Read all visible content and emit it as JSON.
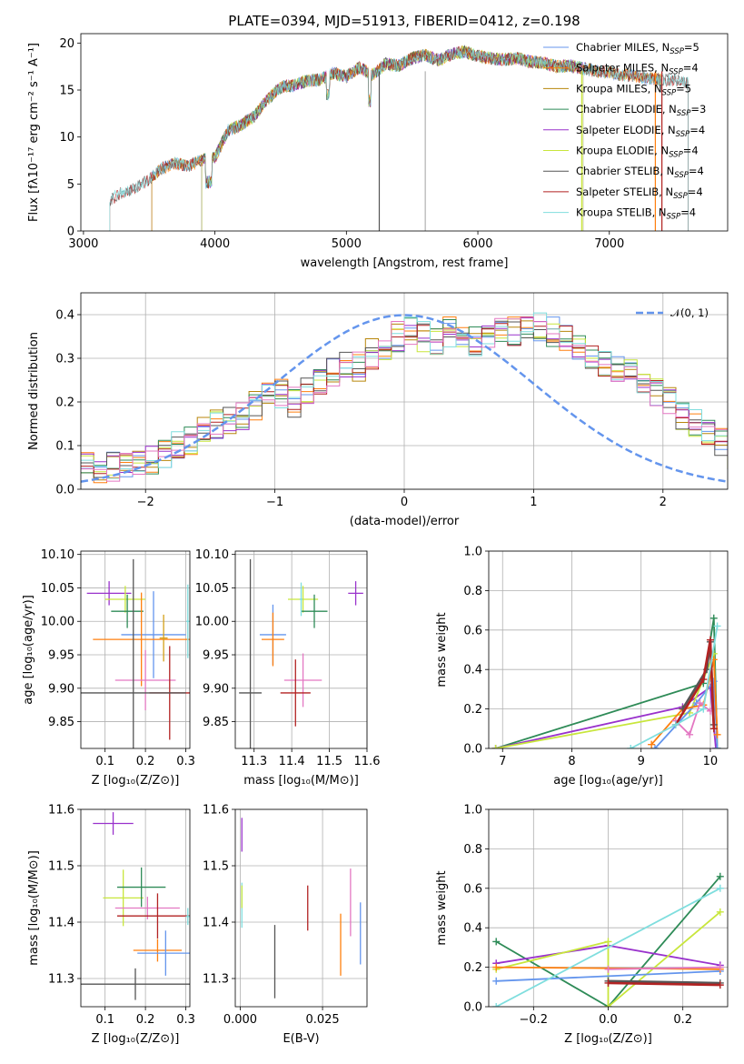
{
  "chart_data": [
    {
      "type": "line",
      "title": "PLATE=0394, MJD=51913, FIBERID=0412, z=0.198",
      "xlabel": "wavelength [Angstrom, rest frame]",
      "ylabel": "Flux [fλ10⁻¹⁷ erg cm⁻² s⁻¹ A⁻¹]",
      "xlim": [
        2980,
        7900
      ],
      "ylim": [
        0,
        21
      ],
      "xticks": [
        3000,
        4000,
        5000,
        6000,
        7000
      ],
      "yticks": [
        0,
        5,
        10,
        15,
        20
      ],
      "grid": false,
      "legend_position": "right",
      "x": [
        3200,
        3300,
        3400,
        3500,
        3600,
        3700,
        3800,
        3900,
        4000,
        4100,
        4200,
        4300,
        4400,
        4500,
        4600,
        4700,
        4800,
        4900,
        5000,
        5100,
        5200,
        5300,
        5400,
        5500,
        5600,
        5700,
        5800,
        5900,
        6000,
        6100,
        6200,
        6300,
        6400,
        6500,
        6600,
        6700,
        6800,
        6900,
        7000,
        7100,
        7200,
        7300,
        7400,
        7500,
        7600
      ],
      "y": [
        3.3,
        4.2,
        4.6,
        5.5,
        6.7,
        7.2,
        6.9,
        7.6,
        7.8,
        10.7,
        11.3,
        12.2,
        14.0,
        15.3,
        15.5,
        16.0,
        16.1,
        16.8,
        16.4,
        17.4,
        16.6,
        17.8,
        17.6,
        18.4,
        18.7,
        18.2,
        18.8,
        19.1,
        18.6,
        18.4,
        18.2,
        18.4,
        18.0,
        17.9,
        17.5,
        17.6,
        17.3,
        17.0,
        16.9,
        16.6,
        16.5,
        16.2,
        16.1,
        16.0,
        15.7
      ],
      "series": [
        {
          "name": "Chabrier MILES, N",
          "sub": "SSP",
          "suffix": "=5",
          "color": "#6495ed",
          "start": 3520,
          "end": 7400
        },
        {
          "name": "Salpeter MILES, N",
          "sub": "SSP",
          "suffix": "=4",
          "color": "#ff7f0e",
          "start": 3520,
          "end": 7400
        },
        {
          "name": "Kroupa MILES, N",
          "sub": "SSP",
          "suffix": "=5",
          "color": "#b8860b",
          "start": 3520,
          "end": 7400
        },
        {
          "name": "Chabrier ELODIE, N",
          "sub": "SSP",
          "suffix": "=3",
          "color": "#2e8b57",
          "start": 3900,
          "end": 6800
        },
        {
          "name": "Salpeter ELODIE, N",
          "sub": "SSP",
          "suffix": "=4",
          "color": "#9932cc",
          "start": 3900,
          "end": 6800
        },
        {
          "name": "Kroupa ELODIE, N",
          "sub": "SSP",
          "suffix": "=4",
          "color": "#c8e63c",
          "start": 3900,
          "end": 6800
        },
        {
          "name": "Chabrier STELIB, N",
          "sub": "SSP",
          "suffix": "=4",
          "color": "#555555",
          "start": 3200,
          "end": 7600
        },
        {
          "name": "Salpeter STELIB, N",
          "sub": "SSP",
          "suffix": "=4",
          "color": "#b22222",
          "start": 3200,
          "end": 7600
        },
        {
          "name": "Kroupa STELIB, N",
          "sub": "SSP",
          "suffix": "=4",
          "color": "#7fdede",
          "start": 3200,
          "end": 7600
        }
      ]
    },
    {
      "type": "bar",
      "xlabel": "(data-model)/error",
      "ylabel": "Normed distribution",
      "xlim": [
        -2.5,
        2.5
      ],
      "ylim": [
        0,
        0.45
      ],
      "xticks": [
        -2,
        -1,
        0,
        1,
        2
      ],
      "yticks": [
        0.0,
        0.1,
        0.2,
        0.3,
        0.4
      ],
      "grid": true,
      "bin_start": -2.5,
      "bin_width": 0.1,
      "values": [
        0.06,
        0.04,
        0.05,
        0.05,
        0.06,
        0.07,
        0.08,
        0.1,
        0.11,
        0.13,
        0.15,
        0.16,
        0.17,
        0.19,
        0.21,
        0.22,
        0.2,
        0.23,
        0.25,
        0.27,
        0.29,
        0.28,
        0.31,
        0.33,
        0.35,
        0.36,
        0.35,
        0.34,
        0.36,
        0.35,
        0.34,
        0.36,
        0.37,
        0.36,
        0.38,
        0.37,
        0.36,
        0.35,
        0.32,
        0.31,
        0.29,
        0.28,
        0.27,
        0.24,
        0.22,
        0.2,
        0.17,
        0.15,
        0.13,
        0.11,
        0.08
      ],
      "legend_position": "top-right",
      "reference": {
        "name": "𝒩(0, 1)",
        "color": "#6495ed",
        "mean": 0,
        "sigma": 1
      }
    },
    {
      "type": "scatter",
      "xlabel": "Z [log₁₀(Z/Z⊙)]",
      "ylabel": "age  [log₁₀(age/yr)]",
      "xlim": [
        0.04,
        0.31
      ],
      "ylim": [
        9.81,
        10.105
      ],
      "xticks": [
        0.1,
        0.2,
        0.3
      ],
      "yticks": [
        9.85,
        9.9,
        9.95,
        10.0,
        10.05,
        10.1
      ],
      "grid": true,
      "points": [
        {
          "x": 0.11,
          "y": 10.042,
          "xerr": 0.055,
          "yerr": 0.018,
          "color": "#9932cc"
        },
        {
          "x": 0.15,
          "y": 10.033,
          "xerr": 0.05,
          "yerr": 0.02,
          "color": "#c8e63c"
        },
        {
          "x": 0.155,
          "y": 10.015,
          "xerr": 0.04,
          "yerr": 0.025,
          "color": "#2e8b57"
        },
        {
          "x": 0.22,
          "y": 9.98,
          "xerr": 0.08,
          "yerr": 0.065,
          "color": "#6495ed"
        },
        {
          "x": 0.19,
          "y": 9.973,
          "xerr": 0.12,
          "yerr": 0.07,
          "color": "#ff7f0e"
        },
        {
          "x": 0.2,
          "y": 9.912,
          "xerr": 0.075,
          "yerr": 0.045,
          "color": "#e377c2"
        },
        {
          "x": 0.26,
          "y": 9.893,
          "xerr": 0.05,
          "yerr": 0.07,
          "color": "#b22222"
        },
        {
          "x": 0.17,
          "y": 9.893,
          "xerr": 0.13,
          "yerr": 0.2,
          "color": "#555555"
        },
        {
          "x": 0.305,
          "y": 10.0,
          "xerr": 0.004,
          "yerr": 0.055,
          "color": "#7fdede"
        },
        {
          "x": 0.245,
          "y": 9.975,
          "xerr": 0.01,
          "yerr": 0.035,
          "color": "#d4a017"
        }
      ]
    },
    {
      "type": "scatter",
      "xlabel": "mass [log₁₀(M/M⊙)]",
      "ylabel": "",
      "xlim": [
        11.25,
        11.6
      ],
      "ylim": [
        9.81,
        10.105
      ],
      "xticks": [
        11.3,
        11.4,
        11.5,
        11.6
      ],
      "yticks": [
        9.85,
        9.9,
        9.95,
        10.0,
        10.05,
        10.1
      ],
      "grid": true,
      "points": [
        {
          "x": 11.57,
          "y": 10.042,
          "xerr": 0.02,
          "yerr": 0.018,
          "color": "#9932cc"
        },
        {
          "x": 11.43,
          "y": 10.033,
          "xerr": 0.04,
          "yerr": 0.02,
          "color": "#c8e63c"
        },
        {
          "x": 11.46,
          "y": 10.015,
          "xerr": 0.035,
          "yerr": 0.025,
          "color": "#2e8b57"
        },
        {
          "x": 11.35,
          "y": 9.98,
          "xerr": 0.035,
          "yerr": 0.045,
          "color": "#6495ed"
        },
        {
          "x": 11.35,
          "y": 9.973,
          "xerr": 0.03,
          "yerr": 0.04,
          "color": "#ff7f0e"
        },
        {
          "x": 11.43,
          "y": 9.912,
          "xerr": 0.05,
          "yerr": 0.04,
          "color": "#e377c2"
        },
        {
          "x": 11.41,
          "y": 9.893,
          "xerr": 0.04,
          "yerr": 0.05,
          "color": "#b22222"
        },
        {
          "x": 11.29,
          "y": 9.893,
          "xerr": 0.03,
          "yerr": 0.2,
          "color": "#555555"
        },
        {
          "x": 11.425,
          "y": 10.033,
          "xerr": 0.004,
          "yerr": 0.025,
          "color": "#7fdede"
        }
      ]
    },
    {
      "type": "line",
      "xlabel": "age  [log₁₀(age/yr)]",
      "ylabel": "mass weight",
      "xlim": [
        6.8,
        10.25
      ],
      "ylim": [
        0,
        1.0
      ],
      "xticks": [
        7,
        8,
        9,
        10
      ],
      "yticks": [
        0.0,
        0.2,
        0.4,
        0.6,
        0.8,
        1.0
      ],
      "grid": true,
      "series": [
        {
          "color": "#2e8b57",
          "x": [
            6.9,
            9.9,
            10.05,
            10.1
          ],
          "y": [
            0.0,
            0.33,
            0.66,
            0.0
          ]
        },
        {
          "color": "#9932cc",
          "x": [
            6.9,
            9.6,
            10.0,
            10.08
          ],
          "y": [
            0.0,
            0.21,
            0.31,
            0.0
          ]
        },
        {
          "color": "#c8e63c",
          "x": [
            6.9,
            9.7,
            10.05,
            10.1
          ],
          "y": [
            0.0,
            0.18,
            0.48,
            0.0
          ]
        },
        {
          "color": "#6495ed",
          "x": [
            9.2,
            9.8,
            10.05,
            10.1
          ],
          "y": [
            0.0,
            0.23,
            0.34,
            0.0
          ]
        },
        {
          "color": "#ff7f0e",
          "x": [
            9.15,
            9.6,
            9.9,
            10.05,
            10.1
          ],
          "y": [
            0.02,
            0.2,
            0.22,
            0.45,
            0.07
          ]
        },
        {
          "color": "#e377c2",
          "x": [
            9.5,
            9.7,
            9.85,
            10.0
          ],
          "y": [
            0.14,
            0.07,
            0.23,
            0.19
          ]
        },
        {
          "color": "#555555",
          "x": [
            9.6,
            9.95,
            10.0,
            10.05
          ],
          "y": [
            0.2,
            0.4,
            0.54,
            0.12
          ]
        },
        {
          "color": "#b22222",
          "x": [
            9.5,
            9.9,
            10.0,
            10.05
          ],
          "y": [
            0.12,
            0.35,
            0.55,
            0.1
          ]
        },
        {
          "color": "#7fdede",
          "x": [
            8.85,
            9.5,
            9.9,
            10.1
          ],
          "y": [
            0.0,
            0.12,
            0.2,
            0.62
          ]
        }
      ]
    },
    {
      "type": "scatter",
      "xlabel": "Z [log₁₀(Z/Z⊙)]",
      "ylabel": "mass [log₁₀(M/M⊙)]",
      "xlim": [
        0.04,
        0.31
      ],
      "ylim": [
        11.25,
        11.6
      ],
      "xticks": [
        0.1,
        0.2,
        0.3
      ],
      "yticks": [
        11.3,
        11.4,
        11.5,
        11.6
      ],
      "grid": true,
      "points": [
        {
          "x": 0.12,
          "y": 11.575,
          "xerr": 0.05,
          "yerr": 0.02,
          "color": "#9932cc"
        },
        {
          "x": 0.145,
          "y": 11.443,
          "xerr": 0.05,
          "yerr": 0.05,
          "color": "#c8e63c"
        },
        {
          "x": 0.19,
          "y": 11.462,
          "xerr": 0.06,
          "yerr": 0.035,
          "color": "#2e8b57"
        },
        {
          "x": 0.205,
          "y": 11.425,
          "xerr": 0.08,
          "yerr": 0.02,
          "color": "#e377c2"
        },
        {
          "x": 0.23,
          "y": 11.35,
          "xerr": 0.06,
          "yerr": 0.02,
          "color": "#ff7f0e"
        },
        {
          "x": 0.25,
          "y": 11.345,
          "xerr": 0.07,
          "yerr": 0.04,
          "color": "#6495ed"
        },
        {
          "x": 0.23,
          "y": 11.411,
          "xerr": 0.1,
          "yerr": 0.04,
          "color": "#b22222"
        },
        {
          "x": 0.175,
          "y": 11.29,
          "xerr": 0.14,
          "yerr": 0.028,
          "color": "#555555"
        },
        {
          "x": 0.305,
          "y": 11.41,
          "xerr": 0.005,
          "yerr": 0.015,
          "color": "#7fdede"
        }
      ]
    },
    {
      "type": "scatter",
      "xlabel": "E(B-V)",
      "ylabel": "",
      "xlim": [
        -0.0015,
        0.0385
      ],
      "ylim": [
        11.25,
        11.6
      ],
      "xticks": [
        0.0,
        0.025
      ],
      "yticks": [
        11.3,
        11.4,
        11.5,
        11.6
      ],
      "grid": true,
      "points": [
        {
          "x": 0.0005,
          "y": 11.555,
          "xerr": 0,
          "yerr": 0.03,
          "color": "#9932cc"
        },
        {
          "x": 0.0005,
          "y": 11.43,
          "xerr": 0,
          "yerr": 0.04,
          "color": "#7fdede"
        },
        {
          "x": 0.0005,
          "y": 11.445,
          "xerr": 0,
          "yerr": 0.02,
          "color": "#c8e63c"
        },
        {
          "x": 0.0105,
          "y": 11.33,
          "xerr": 0,
          "yerr": 0.065,
          "color": "#555555"
        },
        {
          "x": 0.0205,
          "y": 11.425,
          "xerr": 0,
          "yerr": 0.04,
          "color": "#b22222"
        },
        {
          "x": 0.0305,
          "y": 11.36,
          "xerr": 0,
          "yerr": 0.055,
          "color": "#ff7f0e"
        },
        {
          "x": 0.0335,
          "y": 11.435,
          "xerr": 0,
          "yerr": 0.06,
          "color": "#e377c2"
        },
        {
          "x": 0.0365,
          "y": 11.38,
          "xerr": 0,
          "yerr": 0.055,
          "color": "#6495ed"
        }
      ]
    },
    {
      "type": "line",
      "xlabel": "Z [log₁₀(Z/Z⊙)]",
      "ylabel": "mass weight",
      "xlim": [
        -0.32,
        0.32
      ],
      "ylim": [
        0,
        1.0
      ],
      "xticks": [
        -0.2,
        0.0,
        0.2
      ],
      "yticks": [
        0.0,
        0.2,
        0.4,
        0.6,
        0.8,
        1.0
      ],
      "grid": true,
      "series": [
        {
          "color": "#2e8b57",
          "x": [
            -0.3,
            0.0,
            0.3
          ],
          "y": [
            0.33,
            0.0,
            0.66
          ]
        },
        {
          "color": "#9932cc",
          "x": [
            -0.3,
            0.0,
            0.3
          ],
          "y": [
            0.22,
            0.31,
            0.21
          ]
        },
        {
          "color": "#c8e63c",
          "x": [
            -0.3,
            0.0,
            0.0,
            0.3
          ],
          "y": [
            0.19,
            0.33,
            0.0,
            0.48
          ]
        },
        {
          "color": "#6495ed",
          "x": [
            -0.3,
            0.3
          ],
          "y": [
            0.13,
            0.18
          ]
        },
        {
          "color": "#ff7f0e",
          "x": [
            -0.3,
            0.3
          ],
          "y": [
            0.2,
            0.19
          ]
        },
        {
          "color": "#e377c2",
          "x": [
            0.0,
            0.3
          ],
          "y": [
            0.19,
            0.2
          ]
        },
        {
          "color": "#555555",
          "x": [
            0.0,
            0.3
          ],
          "y": [
            0.13,
            0.12
          ]
        },
        {
          "color": "#b22222",
          "x": [
            0.0,
            0.3
          ],
          "y": [
            0.12,
            0.11
          ]
        },
        {
          "color": "#7fdede",
          "x": [
            -0.3,
            0.3
          ],
          "y": [
            0.0,
            0.6
          ]
        }
      ]
    }
  ]
}
